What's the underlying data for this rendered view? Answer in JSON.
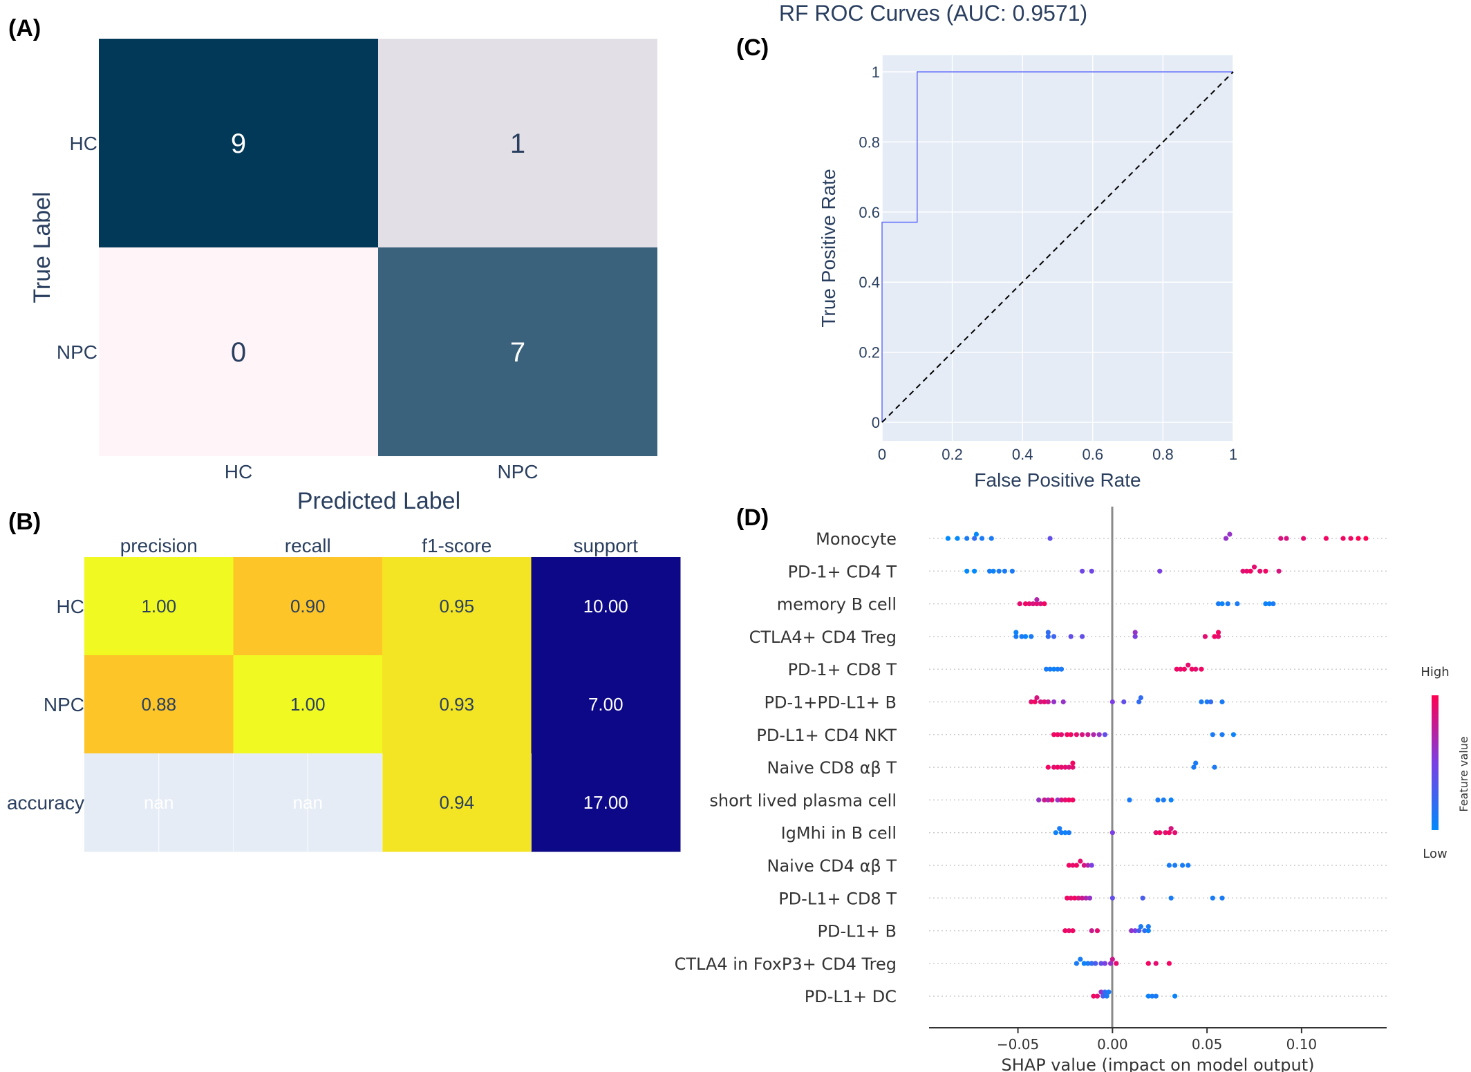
{
  "panel_labels": [
    "(A)",
    "(B)",
    "(C)",
    "(D)"
  ],
  "chart_data": [
    {
      "type": "heatmap",
      "panel": "(A)",
      "xlabel": "Predicted Label",
      "ylabel": "True Label",
      "x_categories": [
        "HC",
        "NPC"
      ],
      "y_categories": [
        "HC",
        "NPC"
      ],
      "values": [
        [
          9,
          1
        ],
        [
          0,
          7
        ]
      ],
      "colorscale": {
        "min_color": "#fff4f8",
        "max_color": "#023858"
      }
    },
    {
      "type": "table",
      "panel": "(B)",
      "columns": [
        "precision",
        "recall",
        "f1-score",
        "support"
      ],
      "rows": [
        "HC",
        "NPC",
        "accuracy"
      ],
      "cells": [
        [
          "1.00",
          "0.90",
          "0.95",
          "10.00"
        ],
        [
          "0.88",
          "1.00",
          "0.93",
          "7.00"
        ],
        [
          "nan",
          "nan",
          "0.94",
          "17.00"
        ]
      ],
      "colors": [
        [
          "#f0f921",
          "#fdc527",
          "#f3e523",
          "#0d0887"
        ],
        [
          "#fdc527",
          "#f0f921",
          "#f3e523",
          "#0d0887"
        ],
        [
          "#e5ecf6",
          "#e5ecf6",
          "#f3e523",
          "#0d0887"
        ]
      ],
      "text_colors": [
        [
          "#2a3f5f",
          "#2a3f5f",
          "#2a3f5f",
          "#ffffff"
        ],
        [
          "#2a3f5f",
          "#2a3f5f",
          "#2a3f5f",
          "#ffffff"
        ],
        [
          "#ffffff",
          "#ffffff",
          "#2a3f5f",
          "#ffffff"
        ]
      ]
    },
    {
      "type": "line",
      "panel": "(C)",
      "title": "RF ROC Curves (AUC: 0.9571)",
      "xlabel": "False Positive Rate",
      "ylabel": "True Positive Rate",
      "xlim": [
        0,
        1
      ],
      "ylim": [
        0,
        1
      ],
      "xticks": [
        "0",
        "0.2",
        "0.4",
        "0.6",
        "0.8",
        "1"
      ],
      "yticks": [
        "0",
        "0.2",
        "0.4",
        "0.6",
        "0.8",
        "1"
      ],
      "series": [
        {
          "style": "solid",
          "color": "#636efa",
          "x": [
            0,
            0,
            0.1,
            0.1,
            1
          ],
          "y": [
            0,
            0.571,
            0.571,
            1,
            1
          ]
        },
        {
          "style": "dashed",
          "color": "#000000",
          "x": [
            0,
            1
          ],
          "y": [
            0,
            1
          ]
        }
      ],
      "grid": true
    },
    {
      "type": "scatter",
      "panel": "(D)",
      "xlabel": "SHAP value (impact on model output)",
      "xlim": [
        -0.097,
        0.145
      ],
      "xticks": [
        -0.05,
        0.0,
        0.05,
        0.1
      ],
      "xtick_labels": [
        "−0.05",
        "0.00",
        "0.05",
        "0.10"
      ],
      "colorbar": {
        "high": "High",
        "low": "Low",
        "label": "Feature value",
        "high_color": "#ff0052",
        "low_color": "#008afb"
      },
      "features": [
        {
          "name": "Monocyte",
          "points": [
            [
              -0.087,
              0
            ],
            [
              -0.082,
              0
            ],
            [
              -0.077,
              0.1
            ],
            [
              -0.073,
              0.2
            ],
            [
              -0.072,
              0
            ],
            [
              -0.069,
              0.1
            ],
            [
              -0.064,
              0.1
            ],
            [
              -0.033,
              0.4
            ],
            [
              0.06,
              0.6
            ],
            [
              0.062,
              0.6
            ],
            [
              0.089,
              0.85
            ],
            [
              0.092,
              0.85
            ],
            [
              0.101,
              0.9
            ],
            [
              0.113,
              0.95
            ],
            [
              0.122,
              0.95
            ],
            [
              0.126,
              0.95
            ],
            [
              0.13,
              1
            ],
            [
              0.134,
              1
            ]
          ]
        },
        {
          "name": "PD-1+ CD4 T",
          "points": [
            [
              -0.077,
              0
            ],
            [
              -0.073,
              0
            ],
            [
              -0.065,
              0.1
            ],
            [
              -0.063,
              0.05
            ],
            [
              -0.06,
              0.1
            ],
            [
              -0.057,
              0.1
            ],
            [
              -0.053,
              0.1
            ],
            [
              -0.016,
              0.45
            ],
            [
              -0.011,
              0.45
            ],
            [
              0.025,
              0.5
            ],
            [
              0.069,
              0.9
            ],
            [
              0.071,
              0.9
            ],
            [
              0.073,
              0.95
            ],
            [
              0.075,
              0.9
            ],
            [
              0.078,
              0.9
            ],
            [
              0.081,
              0.95
            ],
            [
              0.088,
              0.85
            ]
          ]
        },
        {
          "name": "memory B cell",
          "points": [
            [
              -0.049,
              0.9
            ],
            [
              -0.046,
              0.95
            ],
            [
              -0.044,
              0.9
            ],
            [
              -0.042,
              0.85
            ],
            [
              -0.04,
              0.9
            ],
            [
              -0.04,
              0.7
            ],
            [
              -0.038,
              0.85
            ],
            [
              -0.036,
              0.95
            ],
            [
              0.056,
              0.1
            ],
            [
              0.058,
              0.05
            ],
            [
              0.061,
              0.1
            ],
            [
              0.066,
              0.1
            ],
            [
              0.081,
              0.05
            ],
            [
              0.083,
              0.05
            ],
            [
              0.085,
              0.1
            ]
          ]
        },
        {
          "name": "CTLA4+ CD4 Treg",
          "points": [
            [
              -0.051,
              0.1
            ],
            [
              -0.051,
              0.05
            ],
            [
              -0.048,
              0.1
            ],
            [
              -0.046,
              0.05
            ],
            [
              -0.043,
              0.1
            ],
            [
              -0.034,
              0.2
            ],
            [
              -0.034,
              0.2
            ],
            [
              -0.031,
              0.25
            ],
            [
              -0.022,
              0.4
            ],
            [
              -0.016,
              0.4
            ],
            [
              0.012,
              0.5
            ],
            [
              0.012,
              0.6
            ],
            [
              0.049,
              0.9
            ],
            [
              0.054,
              0.95
            ],
            [
              0.056,
              0.9
            ],
            [
              0.056,
              0.95
            ]
          ]
        },
        {
          "name": "PD-1+ CD8 T",
          "points": [
            [
              -0.035,
              0.1
            ],
            [
              -0.033,
              0.1
            ],
            [
              -0.031,
              0.05
            ],
            [
              -0.029,
              0.1
            ],
            [
              -0.027,
              0.1
            ],
            [
              0.034,
              0.95
            ],
            [
              0.036,
              0.9
            ],
            [
              0.038,
              0.95
            ],
            [
              0.04,
              0.9
            ],
            [
              0.042,
              0.95
            ],
            [
              0.044,
              0.9
            ],
            [
              0.047,
              0.95
            ]
          ]
        },
        {
          "name": "PD-1+PD-L1+ B",
          "points": [
            [
              -0.043,
              0.9
            ],
            [
              -0.041,
              0.95
            ],
            [
              -0.04,
              0.85
            ],
            [
              -0.038,
              0.85
            ],
            [
              -0.036,
              0.9
            ],
            [
              -0.034,
              0.8
            ],
            [
              -0.031,
              0.6
            ],
            [
              -0.026,
              0.6
            ],
            [
              0.0,
              0.5
            ],
            [
              0.006,
              0.4
            ],
            [
              0.014,
              0.2
            ],
            [
              0.015,
              0.2
            ],
            [
              0.047,
              0.1
            ],
            [
              0.05,
              0.1
            ],
            [
              0.052,
              0.2
            ],
            [
              0.058,
              0.1
            ]
          ]
        },
        {
          "name": "PD-L1+ CD4 NKT",
          "points": [
            [
              -0.031,
              0.95
            ],
            [
              -0.029,
              0.95
            ],
            [
              -0.027,
              0.9
            ],
            [
              -0.024,
              0.95
            ],
            [
              -0.022,
              0.95
            ],
            [
              -0.019,
              0.9
            ],
            [
              -0.016,
              0.85
            ],
            [
              -0.013,
              0.8
            ],
            [
              -0.01,
              0.7
            ],
            [
              -0.007,
              0.6
            ],
            [
              -0.004,
              0.4
            ],
            [
              0.053,
              0.1
            ],
            [
              0.058,
              0.1
            ],
            [
              0.064,
              0.05
            ]
          ]
        },
        {
          "name": "Naive CD8 αβ T",
          "points": [
            [
              -0.034,
              0.95
            ],
            [
              -0.031,
              0.9
            ],
            [
              -0.029,
              0.95
            ],
            [
              -0.027,
              0.9
            ],
            [
              -0.025,
              0.9
            ],
            [
              -0.023,
              0.85
            ],
            [
              -0.021,
              0.9
            ],
            [
              -0.021,
              0.95
            ],
            [
              0.043,
              0.1
            ],
            [
              0.044,
              0.1
            ],
            [
              0.054,
              0.1
            ]
          ]
        },
        {
          "name": "short lived plasma cell",
          "points": [
            [
              -0.039,
              0.6
            ],
            [
              -0.036,
              0.8
            ],
            [
              -0.034,
              0.7
            ],
            [
              -0.032,
              0.9
            ],
            [
              -0.029,
              0.6
            ],
            [
              -0.027,
              0.85
            ],
            [
              -0.025,
              0.9
            ],
            [
              -0.023,
              0.95
            ],
            [
              -0.021,
              0.95
            ],
            [
              0.009,
              0.1
            ],
            [
              0.024,
              0.1
            ],
            [
              0.027,
              0.1
            ],
            [
              0.031,
              0.05
            ]
          ]
        },
        {
          "name": "IgMhi in B cell",
          "points": [
            [
              -0.03,
              0.05
            ],
            [
              -0.028,
              0.1
            ],
            [
              -0.027,
              0.1
            ],
            [
              -0.025,
              0.05
            ],
            [
              -0.023,
              0.1
            ],
            [
              0.0,
              0.5
            ],
            [
              0.023,
              0.9
            ],
            [
              0.025,
              0.95
            ],
            [
              0.028,
              0.9
            ],
            [
              0.03,
              0.95
            ],
            [
              0.031,
              0.85
            ],
            [
              0.033,
              0.9
            ]
          ]
        },
        {
          "name": "Naive CD4 αβ T",
          "points": [
            [
              -0.023,
              0.95
            ],
            [
              -0.021,
              0.9
            ],
            [
              -0.019,
              0.95
            ],
            [
              -0.017,
              0.9
            ],
            [
              -0.015,
              0.85
            ],
            [
              -0.013,
              0.7
            ],
            [
              -0.011,
              0.5
            ],
            [
              0.03,
              0.1
            ],
            [
              0.033,
              0.1
            ],
            [
              0.037,
              0.1
            ],
            [
              0.04,
              0.1
            ]
          ]
        },
        {
          "name": "PD-L1+ CD8 T",
          "points": [
            [
              -0.024,
              0.95
            ],
            [
              -0.022,
              0.9
            ],
            [
              -0.02,
              0.95
            ],
            [
              -0.018,
              0.85
            ],
            [
              -0.016,
              0.8
            ],
            [
              -0.014,
              0.7
            ],
            [
              -0.012,
              0.6
            ],
            [
              0.0,
              0.4
            ],
            [
              0.016,
              0.3
            ],
            [
              0.031,
              0.1
            ],
            [
              0.053,
              0.1
            ],
            [
              0.058,
              0.1
            ]
          ]
        },
        {
          "name": "PD-L1+ B",
          "points": [
            [
              -0.025,
              0.95
            ],
            [
              -0.023,
              0.9
            ],
            [
              -0.021,
              0.95
            ],
            [
              -0.011,
              0.8
            ],
            [
              -0.008,
              0.9
            ],
            [
              0.01,
              0.6
            ],
            [
              0.012,
              0.5
            ],
            [
              0.014,
              0.3
            ],
            [
              0.015,
              0.1
            ],
            [
              0.017,
              0.2
            ],
            [
              0.019,
              0.05
            ],
            [
              0.019,
              0.1
            ]
          ]
        },
        {
          "name": "CTLA4 in FoxP3+ CD4 Treg",
          "points": [
            [
              -0.019,
              0.1
            ],
            [
              -0.017,
              0.1
            ],
            [
              -0.015,
              0.05
            ],
            [
              -0.013,
              0.1
            ],
            [
              -0.011,
              0.2
            ],
            [
              -0.009,
              0.3
            ],
            [
              -0.006,
              0.4
            ],
            [
              -0.004,
              0.5
            ],
            [
              -0.001,
              0.6
            ],
            [
              0.0,
              0.8
            ],
            [
              0.002,
              0.9
            ],
            [
              0.019,
              0.95
            ],
            [
              0.023,
              0.9
            ],
            [
              0.03,
              0.95
            ]
          ]
        },
        {
          "name": "PD-L1+ DC",
          "points": [
            [
              -0.01,
              0.95
            ],
            [
              -0.008,
              0.9
            ],
            [
              -0.006,
              0.6
            ],
            [
              -0.005,
              0.3
            ],
            [
              -0.004,
              0.2
            ],
            [
              -0.003,
              0.1
            ],
            [
              -0.002,
              0.1
            ],
            [
              0.019,
              0.05
            ],
            [
              0.021,
              0.1
            ],
            [
              0.023,
              0.1
            ],
            [
              0.033,
              0.05
            ]
          ]
        }
      ]
    }
  ]
}
